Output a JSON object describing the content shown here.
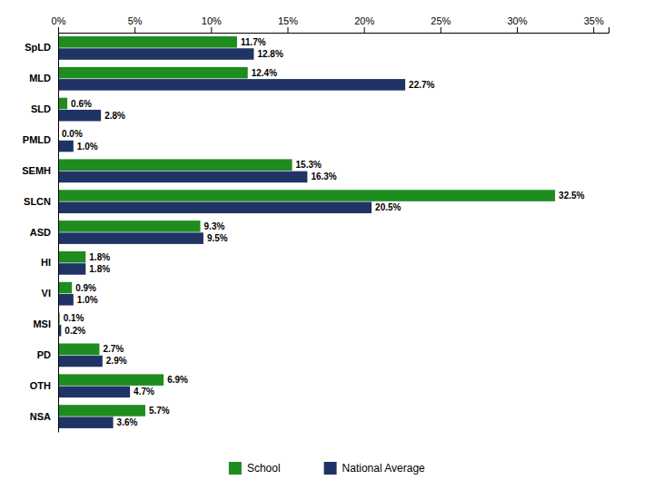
{
  "chart_data": {
    "type": "bar",
    "orientation": "horizontal",
    "categories": [
      "SpLD",
      "MLD",
      "SLD",
      "PMLD",
      "SEMH",
      "SLCN",
      "ASD",
      "HI",
      "VI",
      "MSI",
      "PD",
      "OTH",
      "NSA"
    ],
    "series": [
      {
        "name": "School",
        "color": "#1E8C1E",
        "values": [
          11.7,
          12.4,
          0.6,
          0.0,
          15.3,
          32.5,
          9.3,
          1.8,
          0.9,
          0.1,
          2.7,
          6.9,
          5.7
        ],
        "value_labels": [
          "11.7%",
          "12.4%",
          "0.6%",
          "0.0%",
          "15.3%",
          "32.5%",
          "9.3%",
          "1.8%",
          "0.9%",
          "0.1%",
          "2.7%",
          "6.9%",
          "5.7%"
        ]
      },
      {
        "name": "National Average",
        "color": "#1F3464",
        "values": [
          12.8,
          22.7,
          2.8,
          1.0,
          16.3,
          20.5,
          9.5,
          1.8,
          1.0,
          0.2,
          2.9,
          4.7,
          3.6
        ],
        "value_labels": [
          "12.8%",
          "22.7%",
          "2.8%",
          "1.0%",
          "16.3%",
          "20.5%",
          "9.5%",
          "1.8%",
          "1.0%",
          "0.2%",
          "2.9%",
          "4.7%",
          "3.6%"
        ]
      }
    ],
    "xlim": [
      0,
      36
    ],
    "xticks": [
      {
        "value": 0,
        "label": "0%"
      },
      {
        "value": 5,
        "label": "5%"
      },
      {
        "value": 10,
        "label": "10%"
      },
      {
        "value": 15,
        "label": "15%"
      },
      {
        "value": 20,
        "label": "20%"
      },
      {
        "value": 25,
        "label": "25%"
      },
      {
        "value": 30,
        "label": "30%"
      },
      {
        "value": 35,
        "label": "35%"
      }
    ],
    "data_labels": true,
    "grid": false,
    "legend": "bottom"
  }
}
